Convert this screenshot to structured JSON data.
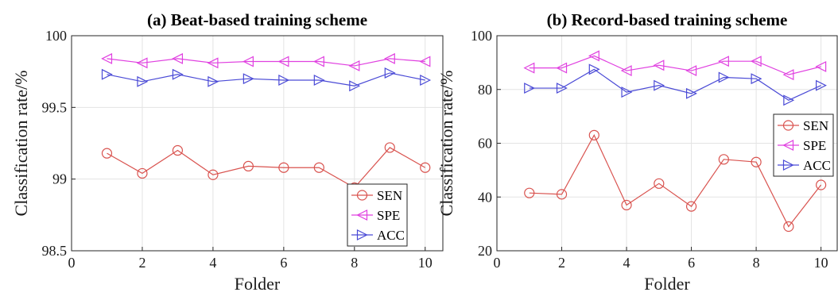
{
  "chart_data": [
    {
      "type": "line",
      "title": "(a) Beat-based training scheme",
      "xlabel": "Folder",
      "ylabel": "Classification rate/%",
      "xlim": [
        0,
        10.5
      ],
      "ylim": [
        98.5,
        100
      ],
      "xticks": [
        0,
        2,
        4,
        6,
        8,
        10
      ],
      "yticks": [
        98.5,
        99,
        99.5,
        100
      ],
      "ytick_labels": [
        "98.5",
        "99",
        "99.5",
        "100"
      ],
      "grid": true,
      "legend_position": "bottom-right",
      "x": [
        1,
        2,
        3,
        4,
        5,
        6,
        7,
        8,
        9,
        10
      ],
      "series": [
        {
          "name": "SEN",
          "color": "#d9534f",
          "marker": "circle",
          "values": [
            99.18,
            99.04,
            99.2,
            99.03,
            99.09,
            99.08,
            99.08,
            98.94,
            99.22,
            99.08
          ]
        },
        {
          "name": "SPE",
          "color": "#e040e0",
          "marker": "triangle-left",
          "values": [
            99.84,
            99.81,
            99.84,
            99.81,
            99.82,
            99.82,
            99.82,
            99.79,
            99.84,
            99.82
          ]
        },
        {
          "name": "ACC",
          "color": "#4a4ad6",
          "marker": "triangle-right",
          "values": [
            99.73,
            99.68,
            99.73,
            99.68,
            99.7,
            99.69,
            99.69,
            99.65,
            99.74,
            99.69
          ]
        }
      ]
    },
    {
      "type": "line",
      "title": "(b) Record-based training scheme",
      "xlabel": "Folder",
      "ylabel": "Classification rate/%",
      "xlim": [
        0,
        10.5
      ],
      "ylim": [
        20,
        100
      ],
      "xticks": [
        0,
        2,
        4,
        6,
        8,
        10
      ],
      "yticks": [
        20,
        40,
        60,
        80,
        100
      ],
      "ytick_labels": [
        "20",
        "40",
        "60",
        "80",
        "100"
      ],
      "grid": true,
      "legend_position": "right",
      "x": [
        1,
        2,
        3,
        4,
        5,
        6,
        7,
        8,
        9,
        10
      ],
      "series": [
        {
          "name": "SEN",
          "color": "#d9534f",
          "marker": "circle",
          "values": [
            41.5,
            41,
            63,
            37,
            45,
            36.5,
            54,
            53,
            29,
            44.5
          ]
        },
        {
          "name": "SPE",
          "color": "#e040e0",
          "marker": "triangle-left",
          "values": [
            88,
            88,
            92.5,
            87,
            89,
            87,
            90.5,
            90.5,
            85.5,
            88.5
          ]
        },
        {
          "name": "ACC",
          "color": "#4a4ad6",
          "marker": "triangle-right",
          "values": [
            80.5,
            80.5,
            87.5,
            79,
            81.5,
            78.5,
            84.5,
            84,
            76,
            81.5
          ]
        }
      ]
    }
  ]
}
